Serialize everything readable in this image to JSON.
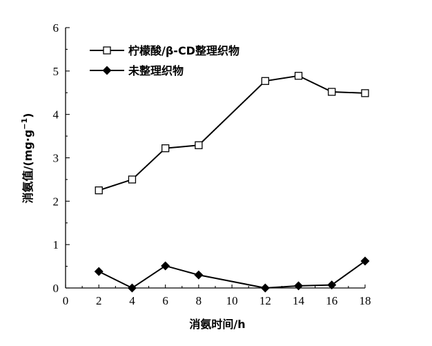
{
  "chart_data": {
    "type": "line",
    "xlabel": "消氨时间/h",
    "ylabel_main": "消氨值/(mg·g",
    "ylabel_sup": "−1",
    "ylabel_close": ")",
    "xlim": [
      0,
      18
    ],
    "ylim": [
      0,
      6
    ],
    "xticks": [
      0,
      2,
      4,
      6,
      8,
      10,
      12,
      14,
      16,
      18
    ],
    "yticks": [
      0,
      1,
      2,
      3,
      4,
      5,
      6
    ],
    "legend_position": "top-left",
    "grid": false,
    "series": [
      {
        "name": "柠檬酸/β-CD整理织物",
        "marker": "open-square",
        "x": [
          2,
          4,
          6,
          8,
          12,
          14,
          16,
          18
        ],
        "y": [
          2.25,
          2.5,
          3.22,
          3.29,
          4.77,
          4.89,
          4.52,
          4.49
        ]
      },
      {
        "name": "未整理织物",
        "marker": "filled-diamond",
        "x": [
          2,
          4,
          6,
          8,
          12,
          14,
          16,
          18
        ],
        "y": [
          0.38,
          0.0,
          0.51,
          0.3,
          0.0,
          0.05,
          0.07,
          0.62
        ]
      }
    ]
  }
}
